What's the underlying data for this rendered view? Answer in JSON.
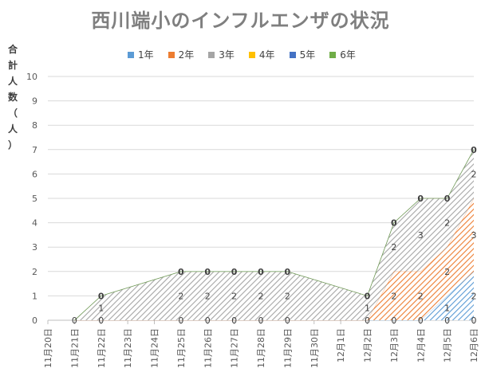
{
  "chart_data": {
    "type": "area",
    "title": "西川端小のインフルエンザの状況",
    "ylabel": "合計人数（人）",
    "ylim": [
      0,
      10
    ],
    "yticks": [
      0,
      1,
      2,
      3,
      4,
      5,
      6,
      7,
      8,
      9,
      10
    ],
    "categories": [
      "11月20日",
      "11月21日",
      "11月22日",
      "11月23日",
      "11月24日",
      "11月25日",
      "11月26日",
      "11月27日",
      "11月28日",
      "11月29日",
      "11月30日",
      "12月1日",
      "12月2日",
      "12月3日",
      "12月4日",
      "12月5日",
      "12月6日"
    ],
    "stacked": true,
    "legend_position": "top",
    "series": [
      {
        "name": "1年",
        "color": "#5b9bd5",
        "values": [
          null,
          0,
          0,
          null,
          null,
          0,
          0,
          0,
          0,
          0,
          null,
          null,
          0,
          0,
          0,
          1,
          2
        ],
        "labels": [
          null,
          null,
          "0",
          null,
          null,
          "0",
          "0",
          "0",
          "0",
          "0",
          null,
          null,
          "0",
          "0",
          "0",
          "1",
          "2"
        ]
      },
      {
        "name": "2年",
        "color": "#ed7d31",
        "values": [
          null,
          0,
          0,
          null,
          null,
          0,
          0,
          0,
          0,
          0,
          null,
          null,
          0,
          2,
          2,
          2,
          3
        ],
        "labels": [
          null,
          null,
          null,
          null,
          null,
          null,
          null,
          null,
          null,
          null,
          null,
          null,
          null,
          "2",
          "2",
          "2",
          "3"
        ]
      },
      {
        "name": "3年",
        "color": "#a5a5a5",
        "values": [
          null,
          0,
          1,
          null,
          null,
          2,
          2,
          2,
          2,
          2,
          null,
          null,
          1,
          2,
          3,
          2,
          2
        ],
        "labels": [
          null,
          null,
          "1",
          null,
          null,
          "2",
          "2",
          "2",
          "2",
          "2",
          null,
          null,
          "1",
          "2",
          "3",
          "2",
          "2"
        ]
      },
      {
        "name": "4年",
        "color": "#ffc000",
        "values": [
          null,
          0,
          0,
          null,
          null,
          0,
          0,
          0,
          0,
          0,
          null,
          null,
          0,
          0,
          0,
          0,
          0
        ],
        "labels": []
      },
      {
        "name": "5年",
        "color": "#4472c4",
        "values": [
          null,
          0,
          0,
          null,
          null,
          0,
          0,
          0,
          0,
          0,
          null,
          null,
          0,
          0,
          0,
          0,
          0
        ],
        "labels": []
      },
      {
        "name": "6年",
        "color": "#70ad47",
        "values": [
          null,
          0,
          0,
          null,
          null,
          0,
          0,
          0,
          0,
          0,
          null,
          null,
          0,
          0,
          0,
          0,
          0
        ],
        "labels": []
      }
    ],
    "zero_labels": [
      null,
      "0",
      "0",
      null,
      null,
      "0",
      "0",
      "0",
      "0",
      "0",
      null,
      null,
      "0",
      "0",
      "0",
      "0",
      "0"
    ]
  },
  "ylabel_chars": [
    "合",
    "計",
    "人",
    "数",
    "（",
    "人",
    "）"
  ]
}
